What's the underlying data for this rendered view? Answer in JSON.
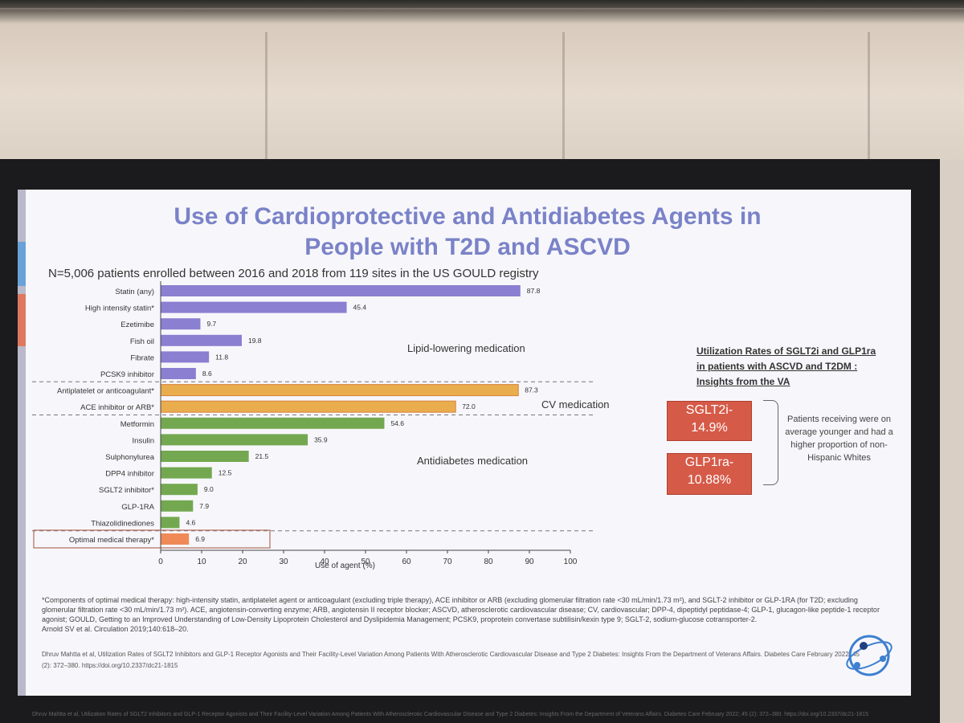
{
  "slide": {
    "title_line1": "Use of Cardioprotective and Antidiabetes Agents in",
    "title_line2": "People with T2D and ASCVD",
    "subtitle": "N=5,006 patients enrolled between 2016 and 2018 from 119 sites in the US GOULD registry"
  },
  "colors": {
    "lipid": "#8a7fd0",
    "cv": "#e9ad4e",
    "antidiabetes": "#73a850",
    "optimal": "#ef8a58",
    "title": "#7a82c8",
    "stat_box": "#d65a48"
  },
  "chart_data": {
    "type": "bar",
    "orientation": "horizontal",
    "xlabel": "Use of agent (%)",
    "xlim": [
      0,
      100
    ],
    "xticks": [
      "0",
      "10",
      "20",
      "30",
      "40",
      "50",
      "60",
      "70",
      "80",
      "90",
      "100"
    ],
    "grid": false,
    "categories": [
      "Statin (any)",
      "High intensity statin*",
      "Ezetimibe",
      "Fish oil",
      "Fibrate",
      "PCSK9 inhibitor",
      "Antiplatelet or anticoagulant*",
      "ACE inhibitor or ARB*",
      "Metformin",
      "Insulin",
      "Sulphonylurea",
      "DPP4 inhibitor",
      "SGLT2 inhibitor*",
      "GLP-1RA",
      "Thiazolidinediones",
      "Optimal medical therapy*"
    ],
    "values": [
      87.8,
      45.4,
      9.7,
      19.8,
      11.8,
      8.6,
      87.3,
      72.0,
      54.6,
      35.9,
      21.5,
      12.5,
      9.0,
      7.9,
      4.6,
      6.9
    ],
    "value_labels": [
      "87.8",
      "45.4",
      "9.7",
      "19.8",
      "11.8",
      "8.6",
      "87.3",
      "72.0",
      "54.6",
      "35.9",
      "21.5",
      "12.5",
      "9.0",
      "7.9",
      "4.6",
      "6.9"
    ],
    "groups": [
      "lipid",
      "lipid",
      "lipid",
      "lipid",
      "lipid",
      "lipid",
      "cv",
      "cv",
      "antidiabetes",
      "antidiabetes",
      "antidiabetes",
      "antidiabetes",
      "antidiabetes",
      "antidiabetes",
      "antidiabetes",
      "optimal"
    ],
    "group_labels": {
      "lipid": "Lipid-lowering medication",
      "cv": "CV medication",
      "antidiabetes": "Antidiabetes medication"
    }
  },
  "sidebar": {
    "title": "Utilization Rates of SGLT2i and GLP1ra in patients with ASCVD and T2DM : Insights from the VA",
    "sglt2_line1": "SGLT2i-",
    "sglt2_line2": "14.9%",
    "glp1_line1": "GLP1ra-",
    "glp1_line2": "10.88%",
    "note": "Patients receiving were on average younger and had a higher proportion of non-Hispanic Whites"
  },
  "footnote": {
    "text": "*Components of optimal medical therapy: high-intensity statin, antiplatelet agent or anticoagulant (excluding triple therapy), ACE inhibitor or ARB (excluding glomerular filtration rate <30 mL/min/1.73 m²), and SGLT-2 inhibitor or GLP-1RA (for T2D; excluding glomerular filtration rate <30 mL/min/1.73 m²). ACE, angiotensin-converting enzyme; ARB, angiotensin II receptor blocker; ASCVD, atherosclerotic cardiovascular disease; CV, cardiovascular; DPP-4, dipeptidyl peptidase-4; GLP-1, glucagon-like peptide-1 receptor agonist; GOULD, Getting to an Improved Understanding of Low-Density Lipoprotein Cholesterol and Dyslipidemia Management; PCSK9, proprotein convertase subtilisin/kexin type 9; SGLT-2, sodium-glucose cotransporter-2.",
    "citation": "Arnold SV et al. Circulation 2019;140:618–20.",
    "reference2": "Dhruv Mahtta et al, Utilization Rates of SGLT2 Inhibitors and GLP-1 Receptor Agonists and Their Facility-Level Variation Among Patients With Atherosclerotic Cardiovascular Disease and Type 2 Diabetes: Insights From the Department of Veterans Affairs. Diabetes Care February 2022; 45 (2): 372–380. https://doi.org/10.2337/dc21-1815"
  }
}
